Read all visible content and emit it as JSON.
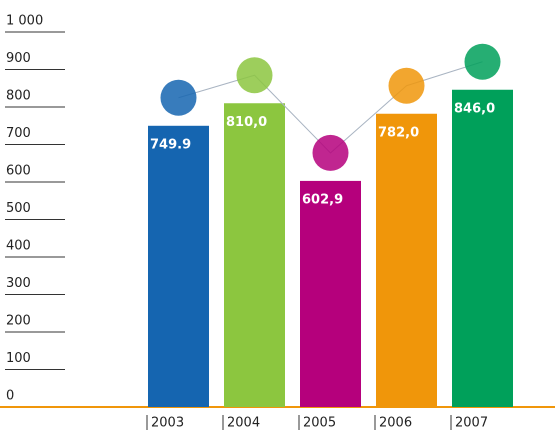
{
  "chart_data": {
    "type": "bar",
    "categories": [
      "2003",
      "2004",
      "2005",
      "2006",
      "2007"
    ],
    "values": [
      749.9,
      810.0,
      602.9,
      782.0,
      846.0
    ],
    "value_labels": [
      "749.9",
      "810,0",
      "602,9",
      "782,0",
      "846,0"
    ],
    "colors": [
      "#1565b0",
      "#8cc63f",
      "#b5007c",
      "#f0960a",
      "#00a05a"
    ],
    "ylim": [
      0,
      1000
    ],
    "yticks": [
      0,
      100,
      200,
      300,
      400,
      500,
      600,
      700,
      800,
      900,
      {
        "value": 1000,
        "label": "1 000"
      }
    ]
  }
}
